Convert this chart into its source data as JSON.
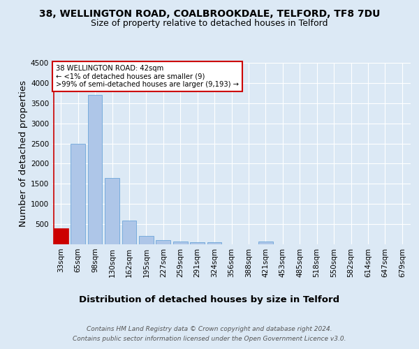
{
  "title_line1": "38, WELLINGTON ROAD, COALBROOKDALE, TELFORD, TF8 7DU",
  "title_line2": "Size of property relative to detached houses in Telford",
  "xlabel": "Distribution of detached houses by size in Telford",
  "ylabel": "Number of detached properties",
  "footer_line1": "Contains HM Land Registry data © Crown copyright and database right 2024.",
  "footer_line2": "Contains public sector information licensed under the Open Government Licence v3.0.",
  "categories": [
    "33sqm",
    "65sqm",
    "98sqm",
    "130sqm",
    "162sqm",
    "195sqm",
    "227sqm",
    "259sqm",
    "291sqm",
    "324sqm",
    "356sqm",
    "388sqm",
    "421sqm",
    "453sqm",
    "485sqm",
    "518sqm",
    "550sqm",
    "582sqm",
    "614sqm",
    "647sqm",
    "679sqm"
  ],
  "values": [
    390,
    2500,
    3700,
    1640,
    580,
    200,
    110,
    70,
    50,
    50,
    0,
    0,
    70,
    0,
    0,
    0,
    0,
    0,
    0,
    0,
    0
  ],
  "bar_color": "#aec6e8",
  "bar_edge_color": "#5b9bd5",
  "highlight_bar_index": 0,
  "highlight_color": "#cc0000",
  "annotation_text": "38 WELLINGTON ROAD: 42sqm\n← <1% of detached houses are smaller (9)\n>99% of semi-detached houses are larger (9,193) →",
  "annotation_box_color": "#ffffff",
  "annotation_box_edge_color": "#cc0000",
  "ylim": [
    0,
    4500
  ],
  "yticks": [
    0,
    500,
    1000,
    1500,
    2000,
    2500,
    3000,
    3500,
    4000,
    4500
  ],
  "background_color": "#dce9f5",
  "plot_bg_color": "#dce9f5",
  "title_fontsize": 10,
  "subtitle_fontsize": 9,
  "axis_label_fontsize": 9.5,
  "tick_fontsize": 7.5,
  "footer_fontsize": 6.5
}
